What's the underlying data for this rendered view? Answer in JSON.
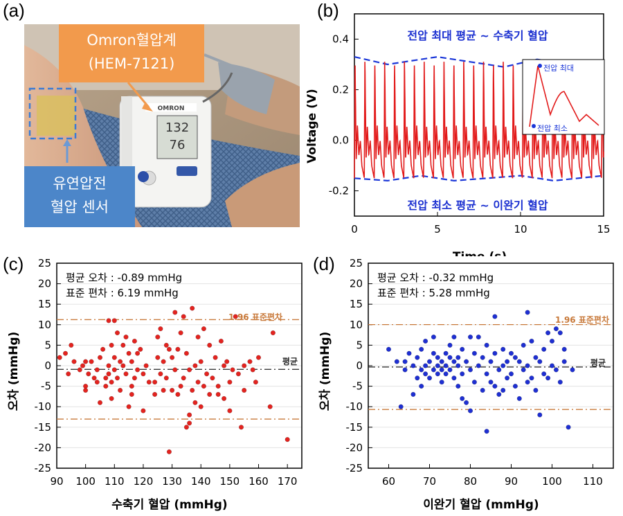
{
  "panels": {
    "a": {
      "label": "(a)",
      "callout_top_line1": "Omron혈압계",
      "callout_top_line2": "(HEM-7121)",
      "callout_bottom_line1": "유연압전",
      "callout_bottom_line2": "혈압 센서",
      "device_brand": "OMRON",
      "device_readout_sys": "132",
      "device_readout_dia": "76",
      "colors": {
        "callout_top": "#f29a4c",
        "callout_bottom": "#4c86c9",
        "sensor_outline": "#3a7bd5"
      }
    },
    "b": {
      "label": "(b)"
    },
    "c": {
      "label": "(c)"
    },
    "d": {
      "label": "(d)"
    }
  },
  "chart_data": [
    {
      "id": "b",
      "type": "line",
      "xlabel": "Time (s)",
      "ylabel": "Voltage (V)",
      "xlim": [
        0,
        15
      ],
      "ylim": [
        -0.3,
        0.5
      ],
      "xticks": [
        0,
        5,
        10,
        15
      ],
      "yticks": [
        -0.2,
        0.0,
        0.2,
        0.4
      ],
      "ytick_labels": [
        "-0.2",
        "0.0",
        "0.2",
        "0.4"
      ],
      "annotation_top": "전압 최대 평균 ~ 수축기 혈압",
      "annotation_bottom": "전압 최소 평균 ~ 이완기 혈압",
      "inset_label_max": "전압 최대",
      "inset_label_min": "전압 최소",
      "beat_period_s": 0.595,
      "peak_voltage": 0.32,
      "trough_voltage": -0.15,
      "upper_envelope": {
        "x": [
          0,
          2,
          4,
          5,
          7,
          9,
          11,
          13,
          15
        ],
        "y": [
          0.33,
          0.3,
          0.32,
          0.33,
          0.31,
          0.29,
          0.32,
          0.3,
          0.31
        ]
      },
      "lower_envelope": {
        "x": [
          0,
          2,
          4,
          6,
          8,
          10,
          12,
          15
        ],
        "y": [
          -0.15,
          -0.16,
          -0.14,
          -0.16,
          -0.15,
          -0.14,
          -0.16,
          -0.14
        ]
      },
      "colors": {
        "signal": "#e21a1a",
        "envelope": "#1a36d8",
        "annotation": "#1a2fd0"
      }
    },
    {
      "id": "c",
      "type": "scatter",
      "xlabel": "수축기 혈압  (mmHg)",
      "ylabel": "오차 (mmHg)",
      "xlim": [
        90,
        175
      ],
      "ylim": [
        -25,
        25
      ],
      "xticks": [
        90,
        100,
        110,
        120,
        130,
        140,
        150,
        160,
        170
      ],
      "yticks": [
        -25,
        -20,
        -15,
        -10,
        -5,
        0,
        5,
        10,
        15,
        20,
        25
      ],
      "stats_line1": "평균 오차 : -0.89 mmHg",
      "stats_line2": "표준 편차 : 6.19 mmHg",
      "mean": -0.89,
      "upper_limit": 11.24,
      "lower_limit": -13.02,
      "limit_label": "1.96 표준편차",
      "mean_label": "평균",
      "colors": {
        "points": "#e3231f",
        "limits": "#c8793a",
        "mean": "#222222"
      },
      "points": [
        [
          91,
          2
        ],
        [
          93,
          3
        ],
        [
          94,
          -2
        ],
        [
          95,
          5
        ],
        [
          96,
          1
        ],
        [
          98,
          -1
        ],
        [
          99,
          0
        ],
        [
          100,
          1
        ],
        [
          100,
          -5
        ],
        [
          100,
          -6
        ],
        [
          101,
          -2
        ],
        [
          102,
          1
        ],
        [
          103,
          -3
        ],
        [
          104,
          -4
        ],
        [
          104,
          -1
        ],
        [
          105,
          2
        ],
        [
          105,
          -9
        ],
        [
          106,
          4
        ],
        [
          107,
          -3
        ],
        [
          107,
          -5
        ],
        [
          108,
          11
        ],
        [
          108,
          0
        ],
        [
          108,
          -2
        ],
        [
          109,
          5
        ],
        [
          109,
          -4
        ],
        [
          109,
          -8
        ],
        [
          110,
          11
        ],
        [
          110,
          2
        ],
        [
          110,
          -1
        ],
        [
          111,
          8
        ],
        [
          111,
          -3
        ],
        [
          112,
          1
        ],
        [
          112,
          -6
        ],
        [
          113,
          5
        ],
        [
          113,
          0
        ],
        [
          114,
          7
        ],
        [
          114,
          -2
        ],
        [
          115,
          3
        ],
        [
          115,
          -10
        ],
        [
          116,
          1
        ],
        [
          116,
          -5
        ],
        [
          116,
          -7
        ],
        [
          117,
          6
        ],
        [
          117,
          -3
        ],
        [
          118,
          3
        ],
        [
          118,
          -1
        ],
        [
          119,
          4
        ],
        [
          120,
          -2
        ],
        [
          120,
          -11
        ],
        [
          121,
          0
        ],
        [
          122,
          -4
        ],
        [
          124,
          -4
        ],
        [
          124,
          -7
        ],
        [
          125,
          7
        ],
        [
          125,
          2
        ],
        [
          126,
          9
        ],
        [
          126,
          -2
        ],
        [
          127,
          1
        ],
        [
          127,
          -6
        ],
        [
          128,
          5
        ],
        [
          128,
          -3
        ],
        [
          129,
          -21
        ],
        [
          129,
          4
        ],
        [
          130,
          2
        ],
        [
          130,
          -6
        ],
        [
          131,
          13
        ],
        [
          131,
          -1
        ],
        [
          132,
          4
        ],
        [
          132,
          -7
        ],
        [
          133,
          8
        ],
        [
          133,
          -5
        ],
        [
          134,
          12
        ],
        [
          134,
          -3
        ],
        [
          135,
          3
        ],
        [
          135,
          -15
        ],
        [
          136,
          -1
        ],
        [
          136,
          -14
        ],
        [
          136,
          -12
        ],
        [
          137,
          14
        ],
        [
          137,
          -6
        ],
        [
          138,
          0
        ],
        [
          138,
          -9
        ],
        [
          139,
          7
        ],
        [
          139,
          -4
        ],
        [
          140,
          1
        ],
        [
          140,
          -10
        ],
        [
          141,
          9
        ],
        [
          141,
          -5
        ],
        [
          142,
          -2
        ],
        [
          143,
          5
        ],
        [
          143,
          -7
        ],
        [
          144,
          -3
        ],
        [
          145,
          2
        ],
        [
          146,
          -5
        ],
        [
          146,
          -7
        ],
        [
          147,
          6
        ],
        [
          148,
          0
        ],
        [
          148,
          -8
        ],
        [
          149,
          1
        ],
        [
          150,
          -4
        ],
        [
          150,
          -11
        ],
        [
          151,
          -1
        ],
        [
          152,
          12
        ],
        [
          153,
          -2
        ],
        [
          154,
          -15
        ],
        [
          155,
          0
        ],
        [
          155,
          -6
        ],
        [
          157,
          1
        ],
        [
          158,
          -1
        ],
        [
          159,
          -4
        ],
        [
          160,
          2
        ],
        [
          164,
          -10
        ],
        [
          165,
          8
        ],
        [
          170,
          -18
        ]
      ]
    },
    {
      "id": "d",
      "type": "scatter",
      "xlabel": "이완기 혈압 (mmHg)",
      "ylabel": "오차 (mmHg)",
      "xlim": [
        55,
        115
      ],
      "ylim": [
        -25,
        25
      ],
      "xticks": [
        60,
        70,
        80,
        90,
        100,
        110
      ],
      "yticks": [
        -25,
        -20,
        -15,
        -10,
        -5,
        0,
        5,
        10,
        15,
        20,
        25
      ],
      "stats_line1": "평균 오차 : -0.32 mmHg",
      "stats_line2": "표준 편차 : 5.28 mmHg",
      "mean": -0.32,
      "upper_limit": 10.03,
      "lower_limit": -10.67,
      "limit_label": "1.96 표준편차",
      "mean_label": "평균",
      "colors": {
        "points": "#1e2fd2",
        "limits": "#c8793a",
        "mean": "#222222"
      },
      "points": [
        [
          60,
          4
        ],
        [
          62,
          1
        ],
        [
          63,
          -10
        ],
        [
          64,
          -1
        ],
        [
          64,
          1
        ],
        [
          65,
          3
        ],
        [
          66,
          -7
        ],
        [
          66,
          0
        ],
        [
          67,
          -3
        ],
        [
          67,
          2
        ],
        [
          68,
          4
        ],
        [
          68,
          -5
        ],
        [
          68,
          -1
        ],
        [
          69,
          0
        ],
        [
          69,
          6
        ],
        [
          69,
          -2
        ],
        [
          70,
          1
        ],
        [
          70,
          -3
        ],
        [
          71,
          3
        ],
        [
          71,
          -1
        ],
        [
          71,
          7
        ],
        [
          72,
          2
        ],
        [
          72,
          -2
        ],
        [
          72,
          0
        ],
        [
          73,
          1
        ],
        [
          73,
          -1
        ],
        [
          73,
          -4
        ],
        [
          74,
          3
        ],
        [
          74,
          0
        ],
        [
          74,
          -2
        ],
        [
          75,
          2
        ],
        [
          75,
          -1
        ],
        [
          75,
          5
        ],
        [
          76,
          1
        ],
        [
          76,
          -3
        ],
        [
          76,
          7
        ],
        [
          77,
          0
        ],
        [
          77,
          2
        ],
        [
          77,
          -5
        ],
        [
          78,
          -2
        ],
        [
          78,
          4
        ],
        [
          78,
          -8
        ],
        [
          79,
          1
        ],
        [
          79,
          -9
        ],
        [
          80,
          7
        ],
        [
          80,
          -1
        ],
        [
          80,
          -11
        ],
        [
          81,
          3
        ],
        [
          81,
          -4
        ],
        [
          82,
          7
        ],
        [
          82,
          0
        ],
        [
          83,
          2
        ],
        [
          83,
          -6
        ],
        [
          84,
          -16
        ],
        [
          84,
          5
        ],
        [
          84,
          -2
        ],
        [
          85,
          -4
        ],
        [
          85,
          1
        ],
        [
          86,
          12
        ],
        [
          86,
          -5
        ],
        [
          86,
          3
        ],
        [
          87,
          -1
        ],
        [
          87,
          -7
        ],
        [
          88,
          0
        ],
        [
          88,
          4
        ],
        [
          88,
          -6
        ],
        [
          89,
          1
        ],
        [
          89,
          -3
        ],
        [
          90,
          3
        ],
        [
          90,
          -2
        ],
        [
          91,
          2
        ],
        [
          91,
          -5
        ],
        [
          92,
          1
        ],
        [
          92,
          -8
        ],
        [
          93,
          -1
        ],
        [
          93,
          5
        ],
        [
          94,
          13
        ],
        [
          94,
          0
        ],
        [
          94,
          -4
        ],
        [
          95,
          -3
        ],
        [
          95,
          6
        ],
        [
          96,
          2
        ],
        [
          96,
          -6
        ],
        [
          97,
          -12
        ],
        [
          97,
          1
        ],
        [
          98,
          4
        ],
        [
          98,
          -2
        ],
        [
          99,
          8
        ],
        [
          99,
          -3
        ],
        [
          100,
          6
        ],
        [
          100,
          0
        ],
        [
          101,
          -1
        ],
        [
          101,
          9
        ],
        [
          102,
          8
        ],
        [
          102,
          -4
        ],
        [
          103,
          4
        ],
        [
          103,
          1
        ],
        [
          104,
          -15
        ],
        [
          105,
          -1
        ]
      ]
    }
  ]
}
